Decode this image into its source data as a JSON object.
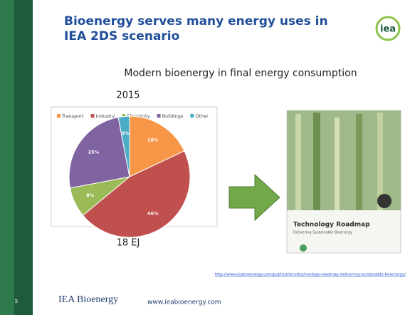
{
  "slide": {
    "title_line1": "Bioenergy serves many energy uses in",
    "title_line2": "IEA 2DS scenario",
    "logo": "iea",
    "subtitle": "Modern bioenergy in final energy consumption",
    "year": "2015",
    "total": "18 EJ",
    "book_title": "Technology Roadmap",
    "book_subtitle": "Delivering Sustainable Bioenergy",
    "link": "http://www.ieabioenergy.com/publications/technology-roadmap-delivering-sustainable-bioenergy/",
    "page_number": "5",
    "footer_brand": "IEA Bioenergy",
    "footer_url": "www.ieabioenergy.com"
  },
  "chart_data": {
    "type": "pie",
    "categories": [
      "Transport",
      "Industry",
      "Electricity",
      "Buildings",
      "Other"
    ],
    "values": [
      18,
      46,
      8,
      25,
      3
    ],
    "value_labels": [
      "18%",
      "46%",
      "8%",
      "25%",
      "3%"
    ],
    "colors": [
      "#f79646",
      "#c0504d",
      "#9bbb59",
      "#8064a2",
      "#4bacc6"
    ],
    "legend": "top"
  }
}
